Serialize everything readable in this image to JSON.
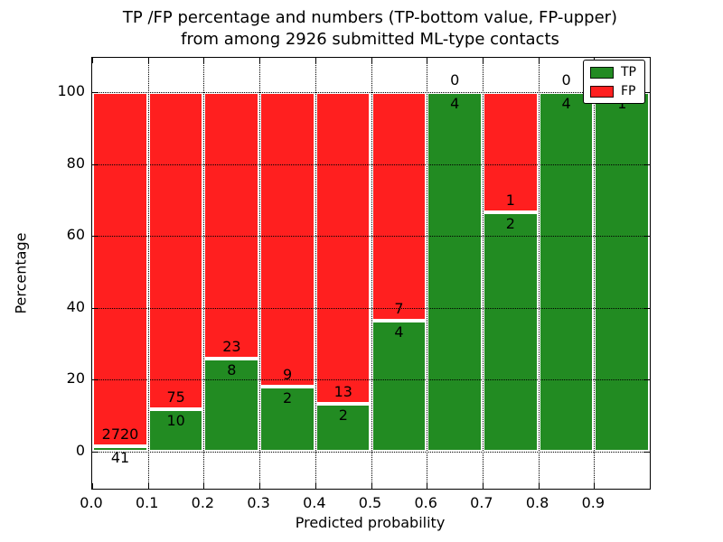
{
  "figure": {
    "title_line1": "TP /FP percentage and numbers (TP-bottom value, FP-upper)",
    "title_line2": "from among 2926 submitted ML-type contacts",
    "background_color": "#ffffff"
  },
  "chart_data": {
    "type": "bar",
    "stacked": true,
    "normalized": "each bar scaled to 100%, counts shown as labels (TP below boundary, FP above boundary)",
    "title": "TP /FP percentage and numbers (TP-bottom value, FP-upper) from among 2926 submitted ML-type contacts",
    "xlabel": "Predicted probability",
    "ylabel": "Percentage",
    "total_contacts": 2926,
    "bin_width": 0.1,
    "bin_starts": [
      0.0,
      0.1,
      0.2,
      0.3,
      0.4,
      0.5,
      0.6,
      0.7,
      0.8,
      0.9
    ],
    "series": [
      {
        "name": "TP",
        "color": "#228b22",
        "counts": [
          41,
          10,
          8,
          2,
          2,
          4,
          4,
          2,
          4,
          1
        ]
      },
      {
        "name": "FP",
        "color": "#ff1f1f",
        "counts": [
          2720,
          75,
          23,
          9,
          13,
          7,
          0,
          1,
          0,
          0
        ]
      }
    ],
    "tp_percentages_approx": [
      1.5,
      11.8,
      25.8,
      18.2,
      13.3,
      36.4,
      100.0,
      66.7,
      100.0,
      100.0
    ],
    "xtick_labels": [
      "0.0",
      "0.1",
      "0.2",
      "0.3",
      "0.4",
      "0.5",
      "0.6",
      "0.7",
      "0.8",
      "0.9"
    ],
    "ytick_values": [
      0,
      20,
      40,
      60,
      80,
      100
    ],
    "ylim": [
      -10.3,
      109.8
    ],
    "grid": "dotted black, horizontal at yticks and vertical at xticks, drawn above bars",
    "legend": {
      "position": "upper right",
      "entries": [
        {
          "label": "TP",
          "color": "#228b22"
        },
        {
          "label": "FP",
          "color": "#ff1f1f"
        }
      ]
    },
    "colors": {
      "tp_green": "#228b22",
      "fp_red": "#ff1f1f",
      "grid": "#000000",
      "text": "#000000"
    }
  }
}
